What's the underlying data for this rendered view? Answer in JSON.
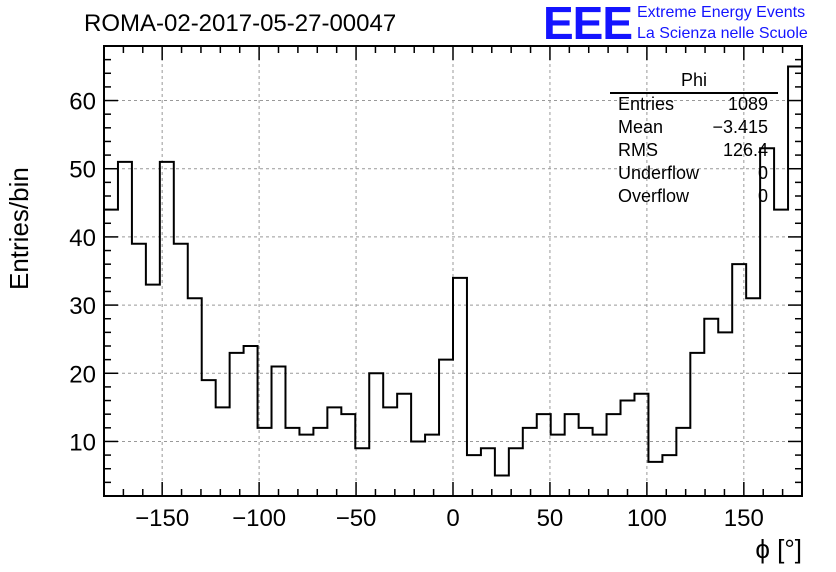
{
  "header": {
    "title": "ROMA-02-2017-05-27-00047",
    "logo_text": "EEE",
    "logo_line1": "Extreme Energy Events",
    "logo_line2": "La Scienza nelle Scuole"
  },
  "stats_box": {
    "name": "Phi",
    "rows": [
      {
        "key": "Entries",
        "value": "1089"
      },
      {
        "key": "Mean",
        "value": "−3.415"
      },
      {
        "key": "RMS",
        "value": "126.4"
      },
      {
        "key": "Underflow",
        "value": "0"
      },
      {
        "key": "Overflow",
        "value": "0"
      }
    ]
  },
  "chart_data": {
    "type": "histogram",
    "title": "ROMA-02-2017-05-27-00047",
    "xlabel": "ϕ [°]",
    "ylabel": "Entries/bin",
    "xlim": [
      -180,
      180
    ],
    "ylim": [
      2,
      68
    ],
    "bin_width": 7.2,
    "x_ticks": [
      -150,
      -100,
      -50,
      0,
      50,
      100,
      150
    ],
    "x_tick_labels": [
      "−150",
      "−100",
      "−50",
      "0",
      "50",
      "100",
      "150"
    ],
    "y_ticks": [
      10,
      20,
      30,
      40,
      50,
      60
    ],
    "y_tick_labels": [
      "10",
      "20",
      "30",
      "40",
      "50",
      "60"
    ],
    "grid": true,
    "color": "#000000",
    "values": [
      44,
      51,
      39,
      33,
      51,
      39,
      31,
      19,
      15,
      23,
      24,
      12,
      21,
      12,
      11,
      12,
      15,
      14,
      9,
      20,
      15,
      17,
      10,
      11,
      22,
      34,
      8,
      9,
      5,
      9,
      12,
      14,
      11,
      14,
      12,
      11,
      14,
      16,
      17,
      7,
      8,
      12,
      23,
      28,
      26,
      36,
      31,
      53,
      44,
      65
    ]
  }
}
